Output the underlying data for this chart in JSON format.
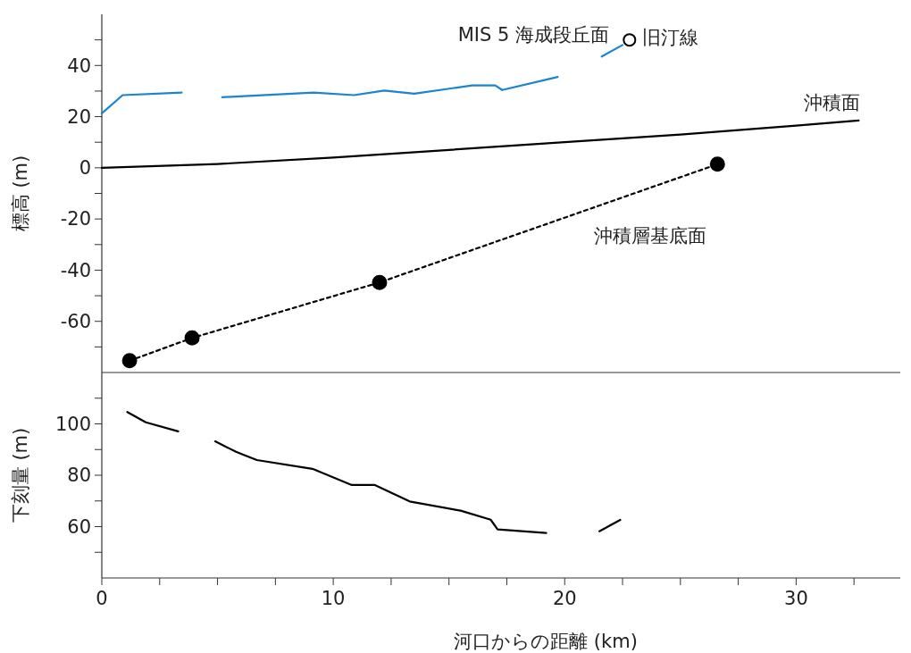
{
  "chart_data": [
    {
      "type": "line",
      "ylabel": "標高 (m)",
      "xlim": [
        0,
        34.5
      ],
      "ylim": [
        -80,
        60
      ],
      "tick_labels": "y",
      "yticks": [
        {
          "value": -70,
          "label": null
        },
        -60,
        {
          "value": -50,
          "label": null
        },
        -40,
        {
          "value": -30,
          "label": null
        },
        -20,
        {
          "value": -10,
          "label": null
        },
        0,
        {
          "value": 10,
          "label": null
        },
        20,
        {
          "value": 30,
          "label": null
        },
        40,
        {
          "value": 50,
          "label": null
        }
      ],
      "series": [
        {
          "name": "MIS 5 海成段丘面",
          "color": "#1a84d0",
          "x": [
            0,
            0.9,
            3.45,
            4.3,
            5.2,
            9.15,
            10.9,
            12.2,
            13.5,
            16,
            17,
            17.3,
            19.7,
            20.6,
            21.6,
            22.5
          ],
          "values": [
            21.3,
            28.4,
            29.4,
            null,
            27.6,
            29.4,
            28.4,
            30.2,
            29,
            32.2,
            32.2,
            30.4,
            35.5,
            null,
            43.5,
            48
          ]
        },
        {
          "name": "旧汀線",
          "type": "scatter",
          "color": "#000000",
          "marker": "circle",
          "x": [
            22.8
          ],
          "values": [
            50
          ]
        },
        {
          "name": "沖積面",
          "color": "#000000",
          "x": [
            0,
            5,
            10,
            15,
            20,
            25,
            30,
            32.7
          ],
          "values": [
            0,
            1.5,
            4,
            7,
            10,
            13,
            16.5,
            18.5
          ]
        },
        {
          "name": "沖積層基底面",
          "color": "#000000",
          "line_style": "dotted",
          "marker": "circle",
          "x": [
            1.2,
            3.9,
            12,
            26.6
          ],
          "values": [
            -75.4,
            -66.5,
            -44.8,
            1.4
          ]
        }
      ]
    },
    {
      "type": "line",
      "ylabel": "下刻量 (m)",
      "xlabel": "河口からの距離 (km)",
      "xlim": [
        0,
        34.5
      ],
      "ylim": [
        40,
        120
      ],
      "xticks": [
        0,
        {
          "value": 2.5,
          "label": null
        },
        {
          "value": 5,
          "label": null
        },
        {
          "value": 7.5,
          "label": null
        },
        10,
        {
          "value": 12.5,
          "label": null
        },
        {
          "value": 15,
          "label": null
        },
        {
          "value": 17.5,
          "label": null
        },
        20,
        {
          "value": 22.5,
          "label": null
        },
        {
          "value": 25,
          "label": null
        },
        {
          "value": 27.5,
          "label": null
        },
        30,
        {
          "value": 32.5,
          "label": null
        }
      ],
      "yticks": [
        {
          "value": 50,
          "label": null
        },
        60,
        {
          "value": 70,
          "label": null
        },
        80,
        {
          "value": 90,
          "label": null
        },
        100,
        {
          "value": 110,
          "label": null
        }
      ],
      "series": [
        {
          "color": "#000000",
          "x": [
            1.1,
            1.9,
            3.3,
            4.1,
            4.9,
            5.8,
            6.7,
            9.1,
            10.8,
            11.8,
            13.3,
            15.5,
            16.8,
            17.1,
            19.2,
            20.3,
            21.5,
            22.4
          ],
          "values": [
            104.6,
            100.6,
            97.1,
            null,
            93.2,
            89.1,
            85.9,
            82.5,
            76.2,
            76.2,
            69.8,
            66.2,
            62.7,
            58.9,
            57.5,
            null,
            58.2,
            62.6
          ]
        }
      ]
    }
  ]
}
